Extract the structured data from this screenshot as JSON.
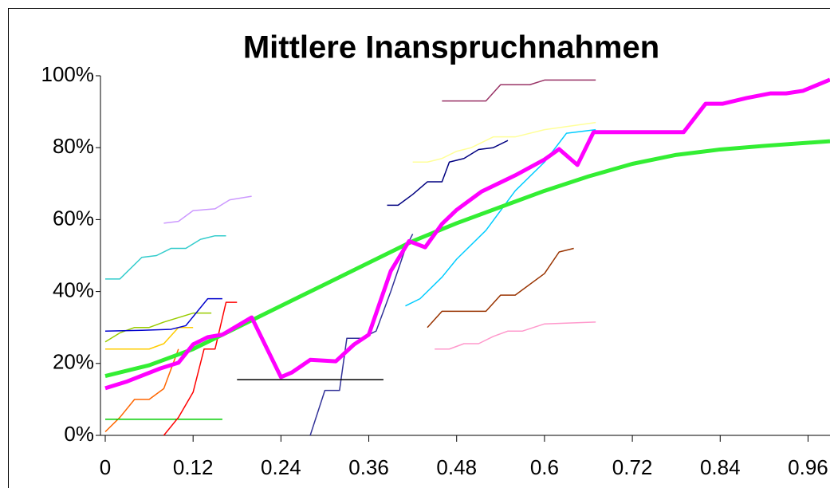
{
  "chart_data": {
    "type": "line",
    "title": "Mittlere Inanspruchnahmen",
    "xlim": [
      0,
      0.99
    ],
    "ylim": [
      0,
      100
    ],
    "xticks": [
      0,
      0.12,
      0.24,
      0.36,
      0.48,
      0.6,
      0.72,
      0.84,
      0.96
    ],
    "yticks": [
      {
        "value": 0,
        "label": "0%"
      },
      {
        "value": 20,
        "label": "20%"
      },
      {
        "value": 40,
        "label": "40%"
      },
      {
        "value": 60,
        "label": "60%"
      },
      {
        "value": 80,
        "label": "80%"
      },
      {
        "value": 100,
        "label": "100%"
      }
    ],
    "series": [
      {
        "color": "#ff00ff",
        "x": [
          0,
          0.03,
          0.075,
          0.1,
          0.12,
          0.14,
          0.16,
          0.2,
          0.24,
          0.255,
          0.28,
          0.315,
          0.34,
          0.36,
          0.39,
          0.415,
          0.437,
          0.46,
          0.48,
          0.514,
          0.56,
          0.6,
          0.62,
          0.645,
          0.667,
          0.79,
          0.82,
          0.843,
          0.876,
          0.909,
          0.93,
          0.953,
          0.99
        ],
        "values": [
          13.1,
          15,
          18.6,
          20.2,
          25.3,
          27.3,
          28,
          32.8,
          16.2,
          17.5,
          21,
          20.6,
          25.3,
          28,
          45.7,
          54,
          52.3,
          58.8,
          62.7,
          67.8,
          72.3,
          76.7,
          79.6,
          75.2,
          84.3,
          84.3,
          92.2,
          92.2,
          93.8,
          95.1,
          95.1,
          95.8,
          98.9
        ]
      },
      {
        "color": "#33ee33",
        "x": [
          0,
          0.06,
          0.12,
          0.18,
          0.24,
          0.3,
          0.36,
          0.42,
          0.48,
          0.54,
          0.6,
          0.66,
          0.72,
          0.78,
          0.84,
          0.9,
          0.99
        ],
        "values": [
          16.5,
          19.5,
          24,
          30,
          36,
          42,
          48,
          54,
          59,
          63.5,
          68,
          72,
          75.5,
          78,
          79.5,
          80.5,
          81.8
        ]
      },
      {
        "color": "#ff99cc",
        "x": [
          0.45,
          0.47,
          0.49,
          0.51,
          0.53,
          0.55,
          0.57,
          0.6,
          0.67
        ],
        "values": [
          24,
          24,
          25.5,
          25.5,
          27.5,
          29,
          29,
          31,
          31.5
        ]
      },
      {
        "color": "#993300",
        "x": [
          0.44,
          0.46,
          0.52,
          0.54,
          0.56,
          0.6,
          0.62,
          0.64
        ],
        "values": [
          30,
          34.5,
          34.5,
          39,
          39,
          45,
          51,
          52
        ]
      },
      {
        "color": "#33cccc",
        "x": [
          0,
          0.02,
          0.05,
          0.07,
          0.09,
          0.11,
          0.13,
          0.15,
          0.165
        ],
        "values": [
          43.5,
          43.5,
          49.5,
          50,
          52,
          52,
          54.5,
          55.5,
          55.5
        ]
      },
      {
        "color": "#cc99ff",
        "x": [
          0.08,
          0.1,
          0.12,
          0.15,
          0.17,
          0.2
        ],
        "values": [
          59,
          59.5,
          62.5,
          63,
          65.5,
          66.5
        ]
      },
      {
        "color": "#993366",
        "x": [
          0.46,
          0.52,
          0.54,
          0.58,
          0.6,
          0.67
        ],
        "values": [
          93,
          93,
          97.5,
          97.5,
          98.8,
          98.8
        ]
      },
      {
        "color": "#000000",
        "x": [
          0.18,
          0.38
        ],
        "values": [
          15.5,
          15.5
        ]
      },
      {
        "color": "#0000cc",
        "x": [
          0,
          0.05,
          0.09,
          0.11,
          0.14,
          0.16
        ],
        "values": [
          29,
          29.2,
          29.5,
          30.5,
          38,
          38
        ]
      },
      {
        "color": "#ffcc00",
        "x": [
          0,
          0.06,
          0.08,
          0.1,
          0.12
        ],
        "values": [
          24,
          24,
          25.5,
          30,
          30
        ]
      },
      {
        "color": "#99cc00",
        "x": [
          0,
          0.02,
          0.04,
          0.06,
          0.08,
          0.12,
          0.145
        ],
        "values": [
          26,
          28.5,
          30,
          30,
          31.5,
          34,
          34
        ]
      },
      {
        "color": "#000080",
        "x": [
          0.385,
          0.4,
          0.42,
          0.44,
          0.46,
          0.47,
          0.49,
          0.51,
          0.53,
          0.55
        ],
        "values": [
          64,
          64,
          67,
          70.5,
          70.5,
          76,
          77,
          79.5,
          80,
          82
        ]
      },
      {
        "color": "#ffff99",
        "x": [
          0.42,
          0.44,
          0.46,
          0.48,
          0.5,
          0.53,
          0.56,
          0.6,
          0.67
        ],
        "values": [
          76,
          76,
          77,
          79,
          80,
          83,
          83,
          85,
          87
        ]
      },
      {
        "color": "#00ccff",
        "x": [
          0.41,
          0.43,
          0.46,
          0.48,
          0.52,
          0.56,
          0.6,
          0.63,
          0.67
        ],
        "values": [
          36,
          38,
          44,
          49,
          57,
          68,
          76,
          84,
          85
        ]
      },
      {
        "color": "#ff0000",
        "x": [
          0.08,
          0.1,
          0.12,
          0.135,
          0.15,
          0.165,
          0.18
        ],
        "values": [
          0,
          5,
          12,
          24,
          24,
          37,
          37
        ]
      },
      {
        "color": "#00cc00",
        "x": [
          0,
          0.16
        ],
        "values": [
          4.5,
          4.5
        ]
      },
      {
        "color": "#333399",
        "x": [
          0.28,
          0.3,
          0.32,
          0.33,
          0.35,
          0.37,
          0.39,
          0.41,
          0.42
        ],
        "values": [
          0,
          12.5,
          12.5,
          27,
          27,
          29,
          40,
          52,
          56
        ]
      },
      {
        "color": "#ff6600",
        "x": [
          0,
          0.02,
          0.04,
          0.06,
          0.08,
          0.1
        ],
        "values": [
          1,
          5,
          10,
          10,
          13,
          24
        ]
      }
    ]
  }
}
